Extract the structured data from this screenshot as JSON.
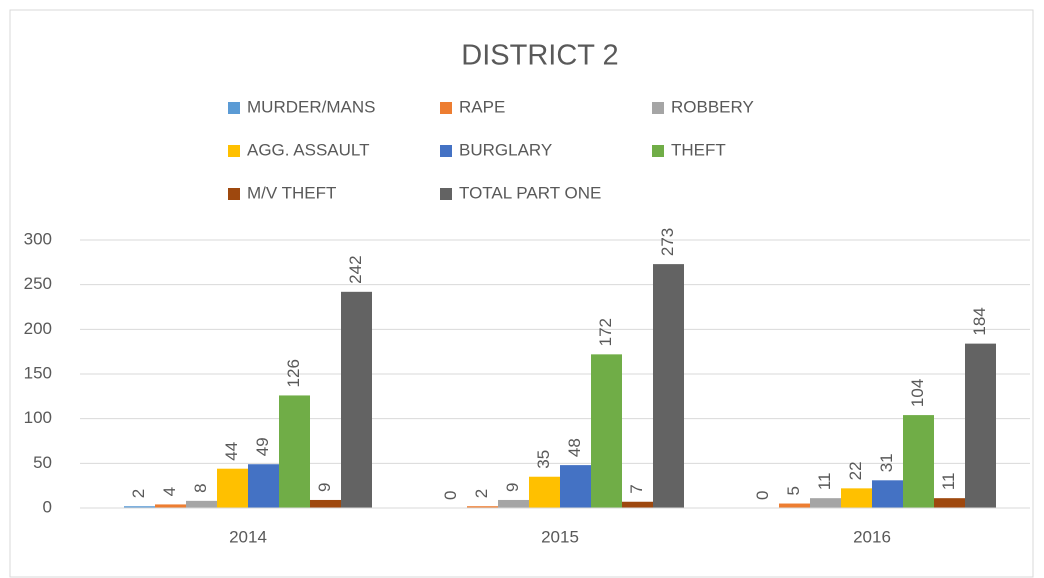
{
  "chart_data": {
    "type": "bar",
    "title": "DISTRICT 2",
    "categories": [
      "2014",
      "2015",
      "2016"
    ],
    "series": [
      {
        "name": "MURDER/MANS",
        "color": "#5b9bd5",
        "values": [
          2,
          0,
          0
        ]
      },
      {
        "name": "RAPE",
        "color": "#ed7d31",
        "values": [
          4,
          2,
          5
        ]
      },
      {
        "name": "ROBBERY",
        "color": "#a5a5a5",
        "values": [
          8,
          9,
          11
        ]
      },
      {
        "name": "AGG. ASSAULT",
        "color": "#ffc000",
        "values": [
          44,
          35,
          22
        ]
      },
      {
        "name": "BURGLARY",
        "color": "#4472c4",
        "values": [
          49,
          48,
          31
        ]
      },
      {
        "name": "THEFT",
        "color": "#70ad47",
        "values": [
          126,
          172,
          104
        ]
      },
      {
        "name": "M/V THEFT",
        "color": "#9e480e",
        "values": [
          9,
          7,
          11
        ]
      },
      {
        "name": "TOTAL PART ONE",
        "color": "#636363",
        "values": [
          242,
          273,
          184
        ]
      }
    ],
    "ylim": [
      0,
      300
    ],
    "yticks": [
      0,
      50,
      100,
      150,
      200,
      250,
      300
    ],
    "grid": true,
    "legend": "top"
  }
}
